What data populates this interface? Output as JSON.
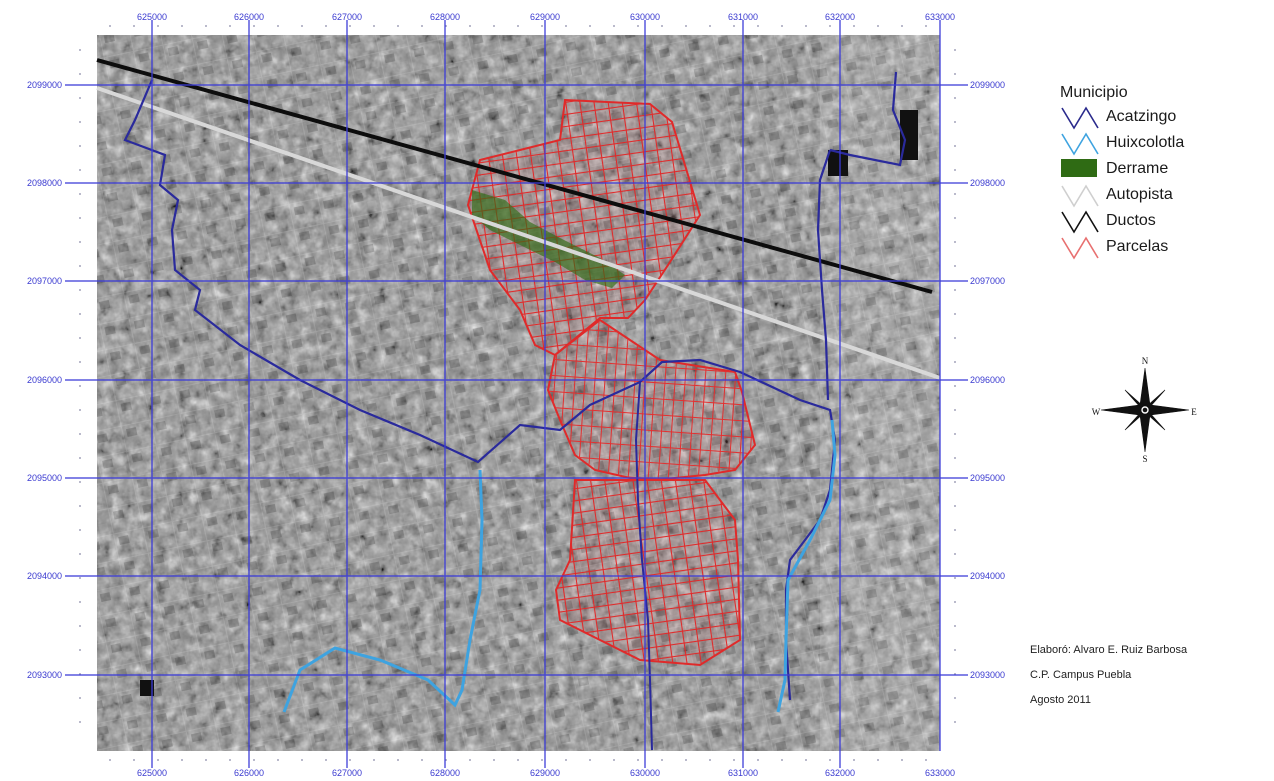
{
  "map": {
    "x_ticks": [
      "625000",
      "626000",
      "627000",
      "628000",
      "629000",
      "630000",
      "631000",
      "632000",
      "633000"
    ],
    "y_ticks": [
      "2099000",
      "2098000",
      "2097000",
      "2096000",
      "2095000",
      "2094000",
      "2093000"
    ]
  },
  "legend": {
    "title": "Municipio",
    "items": [
      {
        "label": "Acatzingo",
        "color": "#2a2a8c",
        "kind": "line"
      },
      {
        "label": "Huixcolotla",
        "color": "#3ea3e0",
        "kind": "line"
      },
      {
        "label": "Derrame",
        "color": "#2f6b14",
        "kind": "fill"
      },
      {
        "label": "Autopista",
        "color": "#d6d6d6",
        "kind": "line"
      },
      {
        "label": "Ductos",
        "color": "#111111",
        "kind": "line"
      },
      {
        "label": "Parcelas",
        "color": "#e87070",
        "kind": "line"
      }
    ]
  },
  "compass": {
    "n": "N",
    "s": "S",
    "e": "E",
    "w": "W"
  },
  "credits": {
    "author": "Elaboró:  Alvaro E. Ruiz Barbosa",
    "institution": "C.P.  Campus Puebla",
    "date": "Agosto  2011"
  }
}
